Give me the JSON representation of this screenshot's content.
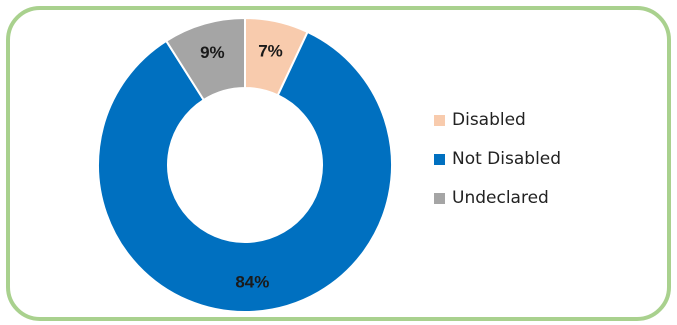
{
  "chart_data": {
    "type": "pie",
    "variant": "donut",
    "categories": [
      "Disabled",
      "Not Disabled",
      "Undeclared"
    ],
    "values": [
      7,
      84,
      9
    ],
    "labels": [
      "7%",
      "84%",
      "9%"
    ],
    "colors": [
      "#f8cbad",
      "#0070c0",
      "#a5a5a5"
    ],
    "legend_position": "right"
  }
}
